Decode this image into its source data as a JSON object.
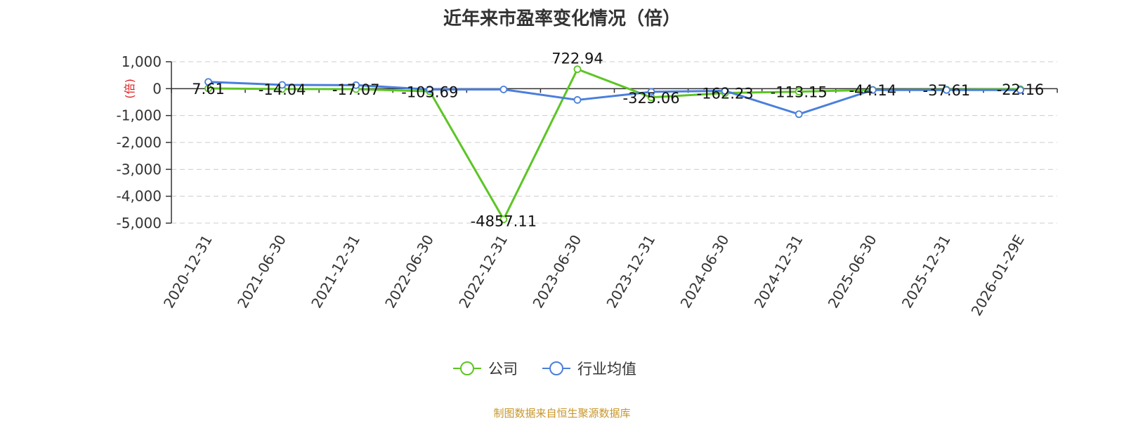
{
  "title": "近年来市盈率变化情况（倍）",
  "source": "制图数据来自恒生聚源数据库",
  "colors": {
    "company": "#5cc524",
    "industry": "#4a7fdc",
    "unit": "#e02020",
    "source": "#c8962a",
    "grid": "#cccccc",
    "axis": "#333333"
  },
  "chart_data": {
    "type": "line",
    "title": "近年来市盈率变化情况（倍）",
    "ylabel": "(倍)",
    "ylim": [
      -5000,
      1000
    ],
    "yticks": [
      1000,
      0,
      -1000,
      -2000,
      -3000,
      -4000,
      -5000
    ],
    "ytick_labels": [
      "1,000",
      "0",
      "-1,000",
      "-2,000",
      "-3,000",
      "-4,000",
      "-5,000"
    ],
    "grid": true,
    "legend_position": "bottom-center",
    "categories": [
      "2020-12-31",
      "2021-06-30",
      "2021-12-31",
      "2022-06-30",
      "2022-12-31",
      "2023-06-30",
      "2023-12-31",
      "2024-06-30",
      "2024-12-31",
      "2025-06-30",
      "2025-12-31",
      "2026-01-29E"
    ],
    "series": [
      {
        "name": "公司",
        "color": "#5cc524",
        "values": [
          7.61,
          -14.04,
          -17.07,
          -103.69,
          -4857.11,
          722.94,
          -325.06,
          -162.23,
          -113.15,
          -44.14,
          -37.61,
          -22.16
        ],
        "labels": [
          "7.61",
          "-14.04",
          "-17.07",
          "-103.69",
          "-4857.11",
          "722.94",
          "-325.06",
          "-162.23",
          "-113.15",
          "-44.14",
          "-37.61",
          "-22.16"
        ]
      },
      {
        "name": "行业均值",
        "color": "#4a7fdc",
        "values": [
          250,
          140,
          130,
          -30,
          -30,
          -420,
          -120,
          -80,
          -950,
          -50,
          -50,
          -50
        ]
      }
    ]
  }
}
